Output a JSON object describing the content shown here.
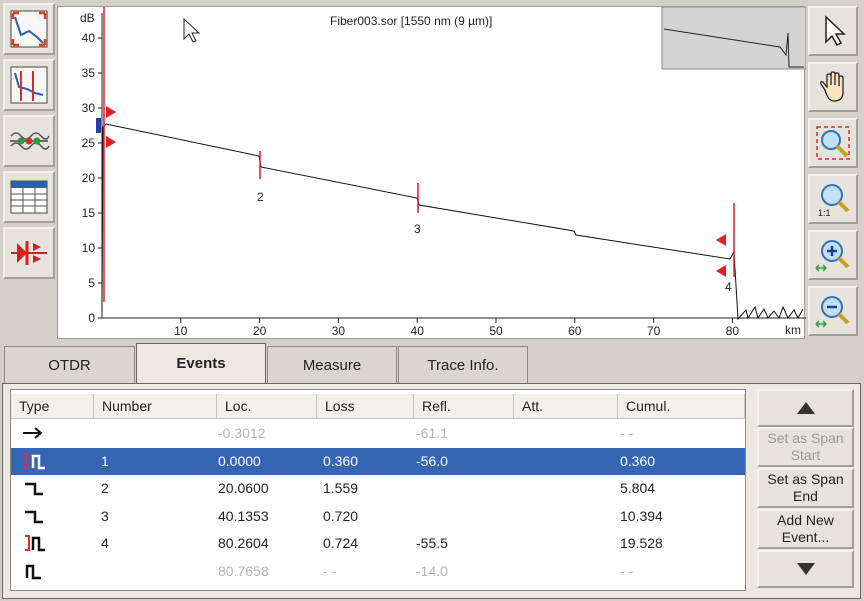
{
  "trace": {
    "title": "Fiber003.sor [1550 nm (9 µm)]",
    "y_unit": "dB",
    "x_unit": "km",
    "y_ticks": [
      "0",
      "5",
      "10",
      "15",
      "20",
      "25",
      "30",
      "35",
      "40"
    ],
    "x_ticks": [
      "10",
      "20",
      "30",
      "40",
      "50",
      "60",
      "70",
      "80"
    ],
    "event_markers": [
      "2",
      "3",
      "4"
    ]
  },
  "tabs": [
    "OTDR",
    "Events",
    "Measure",
    "Trace Info."
  ],
  "active_tab": "Events",
  "table": {
    "columns": [
      "Type",
      "Number",
      "Loc.",
      "Loss",
      "Refl.",
      "Att.",
      "Cumul."
    ],
    "rows": [
      {
        "type_icon": "arrow-right-icon",
        "number": "",
        "loc": "-0.3012",
        "loss": "",
        "refl": "-61.1",
        "att": "",
        "cumul": "- -",
        "dim": true
      },
      {
        "type_icon": "reflective-span-start-icon",
        "number": "1",
        "loc": "0.0000",
        "loss": "0.360",
        "refl": "-56.0",
        "att": "",
        "cumul": "0.360",
        "selected": true
      },
      {
        "type_icon": "non-reflective-step-icon",
        "number": "2",
        "loc": "20.0600",
        "loss": "1.559",
        "refl": "",
        "att": "",
        "cumul": "5.804"
      },
      {
        "type_icon": "non-reflective-step-icon",
        "number": "3",
        "loc": "40.1353",
        "loss": "0.720",
        "refl": "",
        "att": "",
        "cumul": "10.394"
      },
      {
        "type_icon": "reflective-span-end-icon",
        "number": "4",
        "loc": "80.2604",
        "loss": "0.724",
        "refl": "-55.5",
        "att": "",
        "cumul": "19.528"
      },
      {
        "type_icon": "reflective-pulse-icon",
        "number": "",
        "loc": "80.7658",
        "loss": "- -",
        "refl": "-14.0",
        "att": "",
        "cumul": "- -",
        "dim": true
      }
    ]
  },
  "side_buttons": {
    "set_span_start": "Set as Span Start",
    "set_span_end": "Set as Span End",
    "add_event": "Add New Event..."
  }
}
